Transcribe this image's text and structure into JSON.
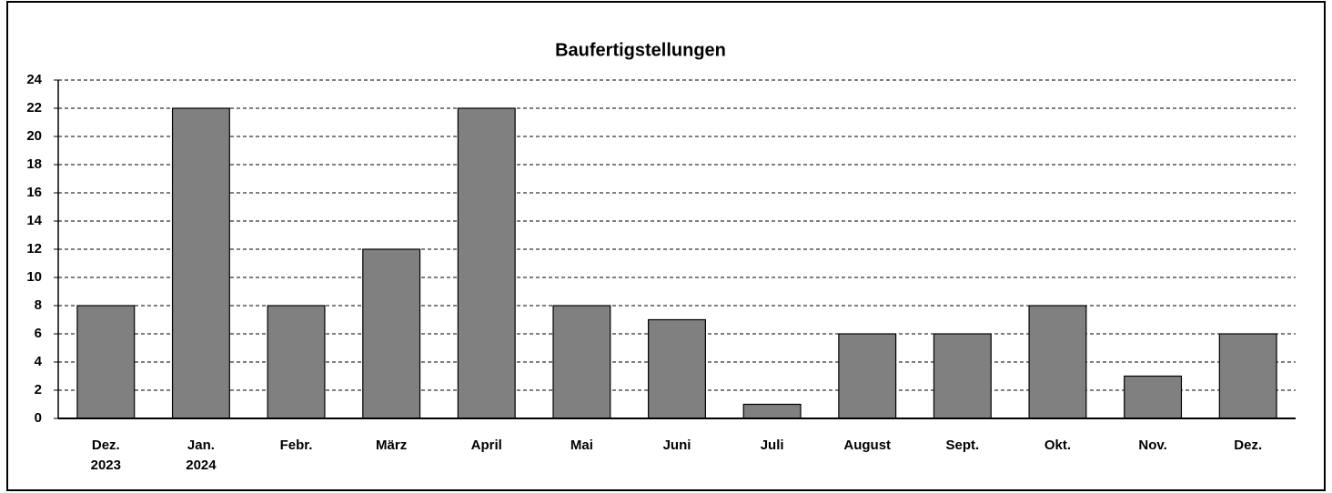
{
  "chart_data": {
    "type": "bar",
    "title": "Baufertigstellungen",
    "categories": [
      "Dez. 2023",
      "Jan. 2024",
      "Febr.",
      "März",
      "April",
      "Mai",
      "Juni",
      "Juli",
      "August",
      "Sept.",
      "Okt.",
      "Nov.",
      "Dez."
    ],
    "values": [
      8,
      22,
      8,
      12,
      22,
      8,
      7,
      1,
      6,
      6,
      8,
      3,
      6
    ],
    "color": "#808080",
    "ylim": [
      0,
      24
    ],
    "yticks": [
      0,
      2,
      4,
      6,
      8,
      10,
      12,
      14,
      16,
      18,
      20,
      22,
      24
    ],
    "grid": true
  }
}
